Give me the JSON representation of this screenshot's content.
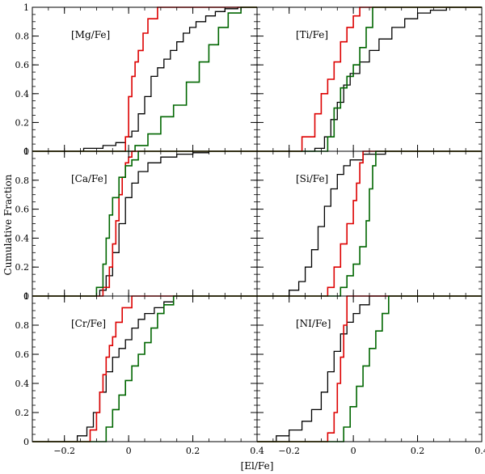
{
  "figure": {
    "xlabel": "[El/Fe]",
    "ylabel": "Cumulative Fraction"
  },
  "chart_data": [
    {
      "type": "line",
      "step": true,
      "title": "[Mg/Fe]",
      "xlim": [
        -0.3,
        0.4
      ],
      "ylim": [
        0,
        1
      ],
      "x_ticks": [
        "−0.2",
        "0",
        "0.2",
        "0.4"
      ],
      "y_ticks": [
        "0",
        "0.2",
        "0.4",
        "0.6",
        "0.8",
        "1"
      ],
      "series": [
        {
          "color": "#000000",
          "x": [
            -0.3,
            -0.14,
            -0.08,
            -0.04,
            -0.01,
            0.01,
            0.03,
            0.05,
            0.07,
            0.09,
            0.11,
            0.13,
            0.15,
            0.17,
            0.19,
            0.21,
            0.24,
            0.27,
            0.3,
            0.34,
            0.4
          ],
          "y": [
            0,
            0.02,
            0.04,
            0.06,
            0.1,
            0.14,
            0.26,
            0.38,
            0.52,
            0.58,
            0.64,
            0.7,
            0.76,
            0.82,
            0.86,
            0.9,
            0.94,
            0.97,
            0.99,
            1.0,
            1.0
          ]
        },
        {
          "color": "#dd0000",
          "x": [
            -0.3,
            -0.01,
            0.0,
            0.01,
            0.02,
            0.03,
            0.045,
            0.06,
            0.09,
            0.4
          ],
          "y": [
            0,
            0.1,
            0.38,
            0.52,
            0.62,
            0.7,
            0.82,
            0.92,
            1.0,
            1.0
          ]
        },
        {
          "color": "#006600",
          "x": [
            -0.3,
            0.02,
            0.06,
            0.1,
            0.14,
            0.18,
            0.22,
            0.25,
            0.28,
            0.31,
            0.35,
            0.4
          ],
          "y": [
            0,
            0.04,
            0.12,
            0.24,
            0.32,
            0.48,
            0.62,
            0.74,
            0.86,
            0.96,
            1.0,
            1.0
          ]
        }
      ]
    },
    {
      "type": "line",
      "step": true,
      "title": "[Ti/Fe]",
      "xlim": [
        -0.3,
        0.4
      ],
      "ylim": [
        0,
        1
      ],
      "x_ticks": [
        "−0.2",
        "0",
        "0.2",
        "0.4"
      ],
      "y_ticks": [
        "0",
        "0.2",
        "0.4",
        "0.6",
        "0.8",
        "1"
      ],
      "series": [
        {
          "color": "#000000",
          "x": [
            -0.3,
            -0.12,
            -0.09,
            -0.07,
            -0.05,
            -0.03,
            -0.01,
            0.02,
            0.05,
            0.08,
            0.12,
            0.16,
            0.2,
            0.24,
            0.29,
            0.4
          ],
          "y": [
            0,
            0.02,
            0.1,
            0.22,
            0.34,
            0.46,
            0.54,
            0.62,
            0.7,
            0.78,
            0.86,
            0.92,
            0.96,
            0.98,
            1.0,
            1.0
          ]
        },
        {
          "color": "#dd0000",
          "x": [
            -0.3,
            -0.16,
            -0.12,
            -0.1,
            -0.08,
            -0.06,
            -0.04,
            -0.02,
            0.0,
            0.02,
            0.4
          ],
          "y": [
            0,
            0.1,
            0.26,
            0.4,
            0.5,
            0.62,
            0.76,
            0.86,
            0.94,
            1.0,
            1.0
          ]
        },
        {
          "color": "#006600",
          "x": [
            -0.3,
            -0.08,
            -0.06,
            -0.04,
            -0.02,
            0.0,
            0.02,
            0.04,
            0.06,
            0.4
          ],
          "y": [
            0,
            0.1,
            0.3,
            0.44,
            0.52,
            0.6,
            0.72,
            0.86,
            1.0,
            1.0
          ]
        }
      ]
    },
    {
      "type": "line",
      "step": true,
      "title": "[Ca/Fe]",
      "xlim": [
        -0.3,
        0.4
      ],
      "ylim": [
        0,
        1
      ],
      "x_ticks": [
        "−0.2",
        "0",
        "0.2",
        "0.4"
      ],
      "y_ticks": [
        "0",
        "0.2",
        "0.4",
        "0.6",
        "0.8",
        "1"
      ],
      "series": [
        {
          "color": "#000000",
          "x": [
            -0.3,
            -0.09,
            -0.07,
            -0.05,
            -0.03,
            -0.01,
            0.01,
            0.03,
            0.06,
            0.1,
            0.15,
            0.2,
            0.25,
            0.4
          ],
          "y": [
            0,
            0.04,
            0.14,
            0.3,
            0.5,
            0.68,
            0.78,
            0.86,
            0.92,
            0.96,
            0.98,
            0.99,
            1.0,
            1.0
          ]
        },
        {
          "color": "#dd0000",
          "x": [
            -0.3,
            -0.08,
            -0.06,
            -0.05,
            -0.04,
            -0.03,
            -0.02,
            -0.01,
            0.0,
            0.01,
            0.4
          ],
          "y": [
            0,
            0.06,
            0.2,
            0.36,
            0.52,
            0.7,
            0.82,
            0.92,
            0.96,
            1.0,
            1.0
          ]
        },
        {
          "color": "#006600",
          "x": [
            -0.3,
            -0.1,
            -0.08,
            -0.07,
            -0.06,
            -0.05,
            -0.03,
            -0.01,
            0.01,
            0.03,
            0.4
          ],
          "y": [
            0,
            0.06,
            0.22,
            0.4,
            0.56,
            0.68,
            0.82,
            0.9,
            0.94,
            1.0,
            1.0
          ]
        }
      ]
    },
    {
      "type": "line",
      "step": true,
      "title": "[Si/Fe]",
      "xlim": [
        -0.3,
        0.4
      ],
      "ylim": [
        0,
        1
      ],
      "x_ticks": [
        "−0.2",
        "0",
        "0.2",
        "0.4"
      ],
      "y_ticks": [
        "0",
        "0.2",
        "0.4",
        "0.6",
        "0.8",
        "1"
      ],
      "series": [
        {
          "color": "#000000",
          "x": [
            -0.3,
            -0.2,
            -0.17,
            -0.15,
            -0.13,
            -0.11,
            -0.09,
            -0.07,
            -0.05,
            -0.03,
            -0.01,
            0.03,
            0.1,
            0.4
          ],
          "y": [
            0,
            0.04,
            0.1,
            0.2,
            0.32,
            0.48,
            0.62,
            0.74,
            0.84,
            0.9,
            0.94,
            0.98,
            1.0,
            1.0
          ]
        },
        {
          "color": "#dd0000",
          "x": [
            -0.3,
            -0.08,
            -0.06,
            -0.04,
            -0.02,
            0.0,
            0.01,
            0.02,
            0.03,
            0.4
          ],
          "y": [
            0,
            0.06,
            0.2,
            0.36,
            0.5,
            0.66,
            0.78,
            0.92,
            1.0,
            1.0
          ]
        },
        {
          "color": "#006600",
          "x": [
            -0.3,
            -0.04,
            -0.02,
            0.0,
            0.02,
            0.04,
            0.05,
            0.06,
            0.07,
            0.4
          ],
          "y": [
            0,
            0.06,
            0.14,
            0.22,
            0.34,
            0.52,
            0.74,
            0.9,
            1.0,
            1.0
          ]
        }
      ]
    },
    {
      "type": "line",
      "step": true,
      "title": "[Cr/Fe]",
      "xlim": [
        -0.3,
        0.4
      ],
      "ylim": [
        0,
        1
      ],
      "x_ticks": [
        "−0.2",
        "0",
        "0.2",
        "0.4"
      ],
      "y_ticks": [
        "0",
        "0.2",
        "0.4",
        "0.6",
        "0.8",
        "1"
      ],
      "series": [
        {
          "color": "#000000",
          "x": [
            -0.3,
            -0.16,
            -0.13,
            -0.11,
            -0.09,
            -0.07,
            -0.05,
            -0.03,
            -0.01,
            0.01,
            0.03,
            0.05,
            0.08,
            0.11,
            0.14,
            0.4
          ],
          "y": [
            0,
            0.04,
            0.1,
            0.2,
            0.34,
            0.48,
            0.58,
            0.64,
            0.7,
            0.78,
            0.84,
            0.88,
            0.92,
            0.96,
            1.0,
            1.0
          ]
        },
        {
          "color": "#dd0000",
          "x": [
            -0.3,
            -0.12,
            -0.1,
            -0.09,
            -0.08,
            -0.07,
            -0.06,
            -0.05,
            -0.04,
            -0.02,
            0.01,
            0.4
          ],
          "y": [
            0,
            0.08,
            0.2,
            0.34,
            0.46,
            0.58,
            0.66,
            0.72,
            0.82,
            0.92,
            1.0,
            1.0
          ]
        },
        {
          "color": "#006600",
          "x": [
            -0.3,
            -0.07,
            -0.05,
            -0.03,
            -0.01,
            0.01,
            0.03,
            0.05,
            0.07,
            0.09,
            0.11,
            0.14,
            0.4
          ],
          "y": [
            0,
            0.1,
            0.22,
            0.32,
            0.42,
            0.52,
            0.6,
            0.68,
            0.78,
            0.88,
            0.94,
            1.0,
            1.0
          ]
        }
      ]
    },
    {
      "type": "line",
      "step": true,
      "title": "[NI/Fe]",
      "xlim": [
        -0.3,
        0.4
      ],
      "ylim": [
        0,
        1
      ],
      "x_ticks": [
        "−0.2",
        "0",
        "0.2",
        "0.4"
      ],
      "y_ticks": [
        "0",
        "0.2",
        "0.4",
        "0.6",
        "0.8",
        "1"
      ],
      "series": [
        {
          "color": "#000000",
          "x": [
            -0.3,
            -0.24,
            -0.2,
            -0.16,
            -0.13,
            -0.1,
            -0.08,
            -0.06,
            -0.04,
            -0.02,
            0.0,
            0.02,
            0.05,
            0.4
          ],
          "y": [
            0,
            0.04,
            0.08,
            0.14,
            0.22,
            0.34,
            0.48,
            0.62,
            0.74,
            0.82,
            0.88,
            0.94,
            1.0,
            1.0
          ]
        },
        {
          "color": "#dd0000",
          "x": [
            -0.3,
            -0.08,
            -0.06,
            -0.05,
            -0.04,
            -0.03,
            -0.02,
            0.4
          ],
          "y": [
            0,
            0.06,
            0.2,
            0.4,
            0.58,
            0.8,
            1.0,
            1.0
          ]
        },
        {
          "color": "#006600",
          "x": [
            -0.3,
            -0.03,
            -0.01,
            0.01,
            0.03,
            0.05,
            0.07,
            0.09,
            0.11,
            0.4
          ],
          "y": [
            0,
            0.1,
            0.24,
            0.38,
            0.52,
            0.64,
            0.76,
            0.88,
            1.0,
            1.0
          ]
        }
      ]
    }
  ]
}
